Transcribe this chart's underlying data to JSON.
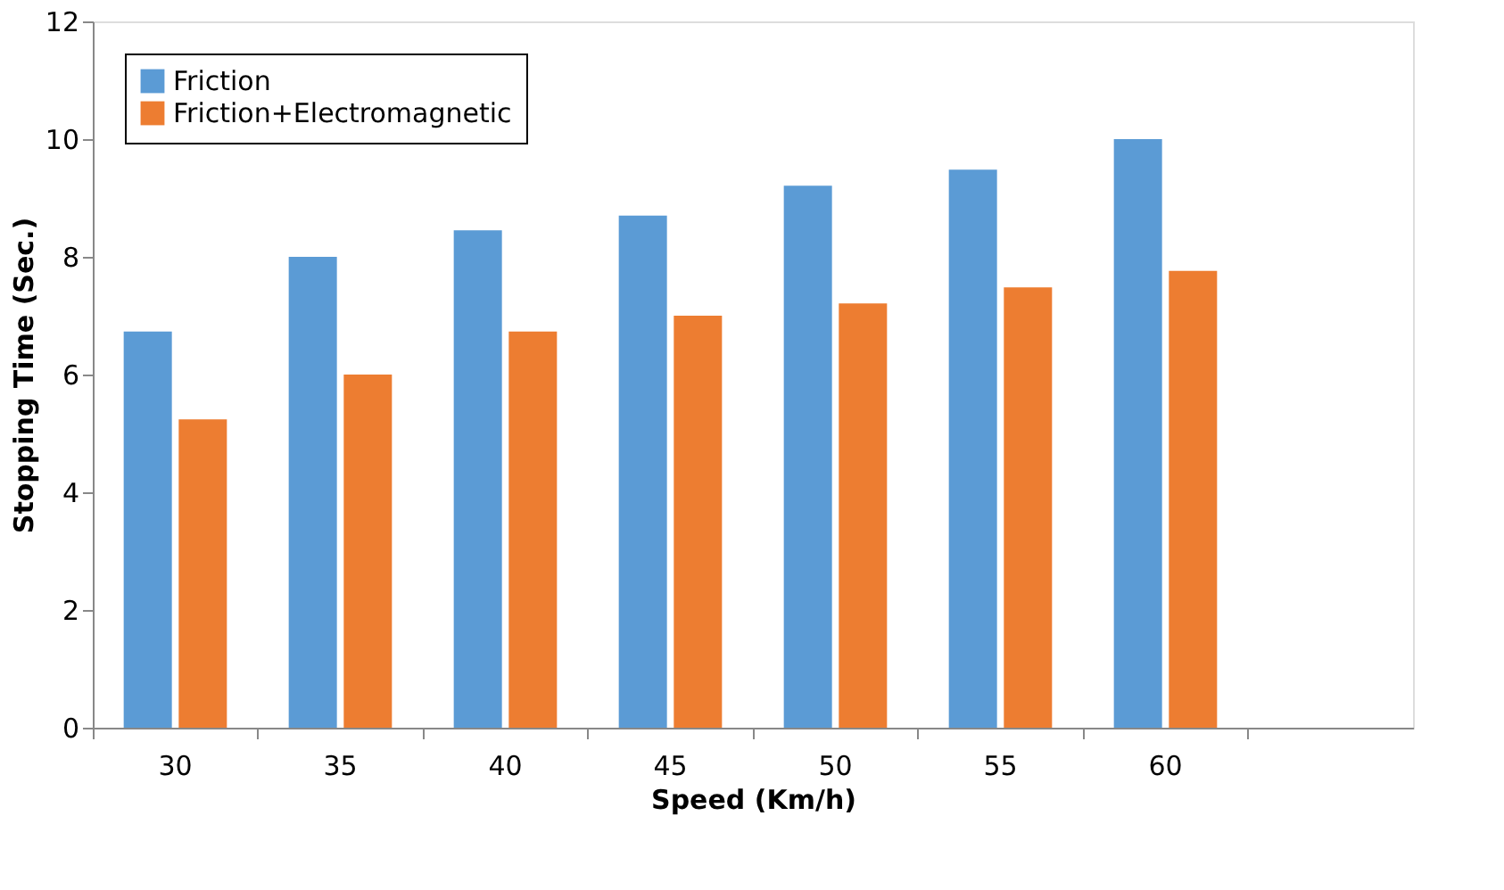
{
  "chart_data": {
    "type": "bar",
    "xlabel": "Speed (Km/h)",
    "ylabel": "Stopping Time (Sec.)",
    "categories": [
      "30",
      "35",
      "40",
      "45",
      "50",
      "55",
      "60",
      null
    ],
    "series": [
      {
        "name": "Friction",
        "color": "#5b9bd5",
        "values": [
          6.73,
          8.0,
          8.45,
          8.7,
          9.21,
          9.48,
          10.0,
          null
        ]
      },
      {
        "name": "Friction+Electromagnetic",
        "color": "#ed7d31",
        "values": [
          5.24,
          6.0,
          6.73,
          7.0,
          7.21,
          7.48,
          7.76,
          null
        ]
      }
    ],
    "ylim": [
      0,
      12
    ],
    "yticks": [
      0,
      2,
      4,
      6,
      8,
      10,
      12
    ],
    "grid": false,
    "legend": "top left"
  }
}
